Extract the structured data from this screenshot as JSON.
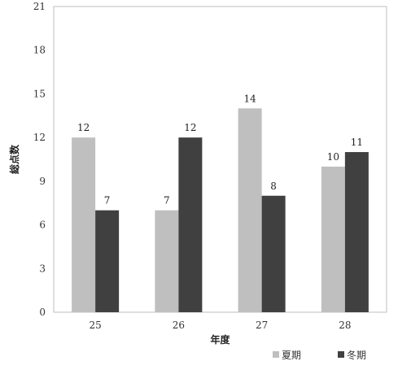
{
  "chart_data": {
    "type": "bar",
    "categories": [
      "25",
      "26",
      "27",
      "28"
    ],
    "series": [
      {
        "name": "夏期",
        "values": [
          12,
          7,
          14,
          10
        ],
        "color": "#bfbfbf"
      },
      {
        "name": "冬期",
        "values": [
          7,
          12,
          8,
          11
        ],
        "color": "#404040"
      }
    ],
    "xlabel": "年度",
    "ylabel": "総点数",
    "ylim": [
      0,
      21
    ],
    "yticks": [
      0,
      3,
      6,
      9,
      12,
      15,
      18,
      21
    ],
    "grid": false,
    "legend_position": "bottom-right",
    "axis_color": "#bfbfbf"
  }
}
